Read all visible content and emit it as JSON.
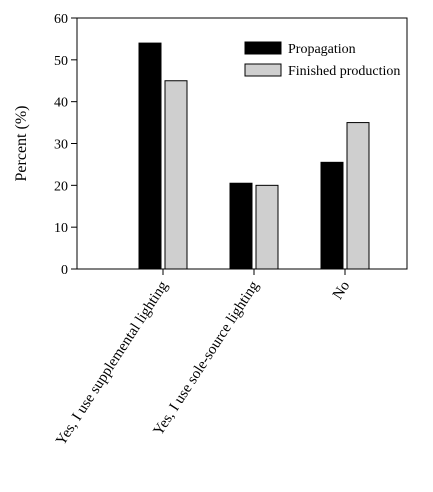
{
  "chart_data": {
    "type": "bar",
    "ylabel": "Percent (%)",
    "xlabel": "",
    "ylim": [
      0,
      60
    ],
    "yticks": [
      0,
      10,
      20,
      30,
      40,
      50,
      60
    ],
    "categories": [
      "Yes, I use supplemental lighting",
      "Yes, I use sole-source lighting",
      "No"
    ],
    "series": [
      {
        "name": "Propagation",
        "color": "#000000",
        "values": [
          54,
          20.5,
          25.5
        ]
      },
      {
        "name": "Finished production",
        "color": "#cfcfcf",
        "values": [
          45,
          20,
          35
        ]
      }
    ],
    "legend_position": "top-right",
    "grid": false
  }
}
